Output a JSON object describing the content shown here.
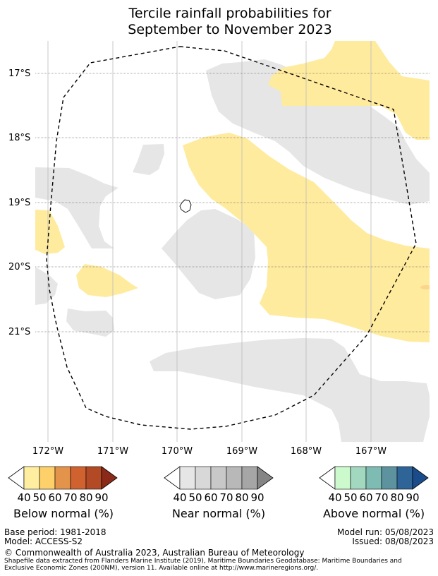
{
  "title": {
    "line1": "Tercile rainfall probabilities for",
    "line2": "September to November 2023"
  },
  "map": {
    "lat_labels": [
      "17°S",
      "18°S",
      "19°S",
      "20°S",
      "21°S"
    ],
    "lon_labels": [
      "172°W",
      "171°W",
      "170°W",
      "169°W",
      "168°W",
      "167°W"
    ],
    "colors": {
      "below": "#ffeb9e",
      "near": "#e6e6e6",
      "above_spot": "#fcd48a"
    }
  },
  "colorbars": {
    "ticks": [
      "40",
      "50",
      "60",
      "70",
      "80",
      "90"
    ],
    "below": {
      "label": "Below normal (%)",
      "colors": [
        "#ffffff",
        "#ffeda0",
        "#fed06a",
        "#e4934b",
        "#d0622f",
        "#b24a26",
        "#8b2a19"
      ]
    },
    "near": {
      "label": "Near normal (%)",
      "colors": [
        "#ffffff",
        "#e6e6e6",
        "#d8d8d8",
        "#c8c8c8",
        "#b8b8b8",
        "#a6a6a6",
        "#858585"
      ]
    },
    "above": {
      "label": "Above normal (%)",
      "colors": [
        "#ffffff",
        "#ccfacc",
        "#a2d8bf",
        "#7ebbb2",
        "#5c939f",
        "#2e6497",
        "#1a4c8c"
      ]
    }
  },
  "footer": {
    "base_period": "Base period: 1981-2018",
    "model": "Model: ACCESS-S2",
    "model_run": "Model run: 05/08/2023",
    "issued": "Issued: 08/08/2023",
    "copyright": "© Commonwealth of Australia 2023, Australian Bureau of Meteorology",
    "shapefile_line1": "Shapefile data extracted from Flanders Marine Institute (2019), Maritime Boundaries Geodatabase: Maritime Boundaries and",
    "shapefile_line2": "Exclusive Economic Zones (200NM), version 11. Available online at http://www.marineregions.org/."
  }
}
